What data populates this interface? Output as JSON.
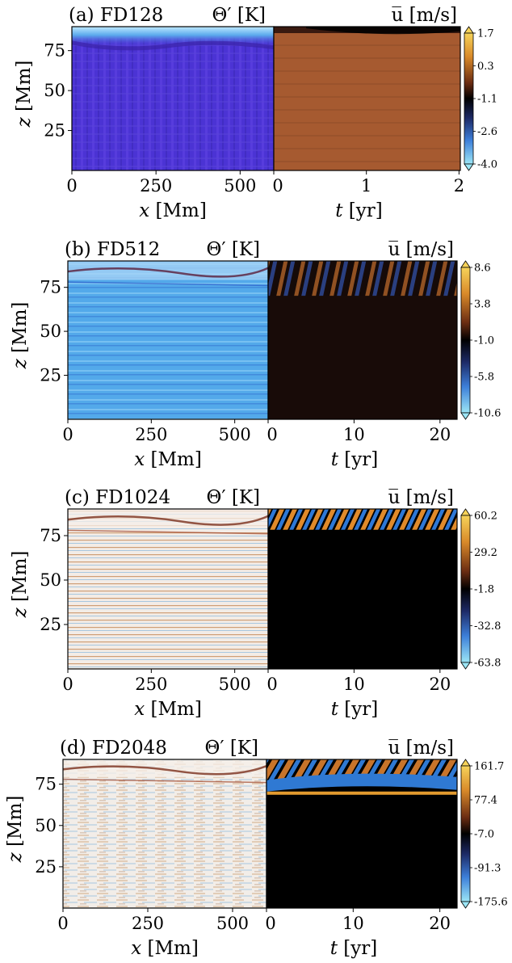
{
  "figure": {
    "panels": [
      {
        "label": "(a) FD128",
        "left_title": "Θ′ [K]",
        "right_title": "u̅ [m/s]",
        "left_xlabel_sym": "x",
        "left_xlabel_unit": "[Mm]",
        "right_xlabel_sym": "t",
        "right_xlabel_unit": "[yr]",
        "ylabel_sym": "z",
        "ylabel_unit": "[Mm]",
        "x_ticks": [
          "0",
          "250",
          "500"
        ],
        "t_ticks": [
          "0",
          "1",
          "2"
        ],
        "z_ticks": [
          "25",
          "50",
          "75"
        ],
        "colorbar_ticks": [
          "1.7",
          "0.3",
          "-1.1",
          "-2.6",
          "-4.0"
        ]
      },
      {
        "label": "(b) FD512",
        "left_title": "Θ′ [K]",
        "right_title": "u̅ [m/s]",
        "left_xlabel_sym": "x",
        "left_xlabel_unit": "[Mm]",
        "right_xlabel_sym": "t",
        "right_xlabel_unit": "[yr]",
        "ylabel_sym": "z",
        "ylabel_unit": "[Mm]",
        "x_ticks": [
          "0",
          "250",
          "500"
        ],
        "t_ticks": [
          "0",
          "10",
          "20"
        ],
        "z_ticks": [
          "25",
          "50",
          "75"
        ],
        "colorbar_ticks": [
          "8.6",
          "3.8",
          "-1.0",
          "-5.8",
          "-10.6"
        ]
      },
      {
        "label": "(c) FD1024",
        "left_title": "Θ′ [K]",
        "right_title": "u̅ [m/s]",
        "left_xlabel_sym": "x",
        "left_xlabel_unit": "[Mm]",
        "right_xlabel_sym": "t",
        "right_xlabel_unit": "[yr]",
        "ylabel_sym": "z",
        "ylabel_unit": "[Mm]",
        "x_ticks": [
          "0",
          "250",
          "500"
        ],
        "t_ticks": [
          "0",
          "10",
          "20"
        ],
        "z_ticks": [
          "25",
          "50",
          "75"
        ],
        "colorbar_ticks": [
          "60.2",
          "29.2",
          "-1.8",
          "-32.8",
          "-63.8"
        ]
      },
      {
        "label": "(d) FD2048",
        "left_title": "Θ′ [K]",
        "right_title": "u̅ [m/s]",
        "left_xlabel_sym": "x",
        "left_xlabel_unit": "[Mm]",
        "right_xlabel_sym": "t",
        "right_xlabel_unit": "[yr]",
        "ylabel_sym": "z",
        "ylabel_unit": "[Mm]",
        "x_ticks": [
          "0",
          "250",
          "500"
        ],
        "t_ticks": [
          "0",
          "10",
          "20"
        ],
        "z_ticks": [
          "25",
          "50",
          "75"
        ],
        "colorbar_ticks": [
          "161.7",
          "77.4",
          "-7.0",
          "-91.3",
          "-175.6"
        ]
      }
    ]
  },
  "chart_data": [
    {
      "type": "heatmap",
      "name": "(a) FD128",
      "left": {
        "x_range": [
          0,
          600
        ],
        "z_range": [
          0,
          90
        ],
        "colormap": "blue-purple"
      },
      "right": {
        "t_range": [
          0,
          2
        ],
        "z_range": [
          0,
          90
        ]
      },
      "colorbar": {
        "min": -4.0,
        "max": 1.7,
        "ticks": [
          1.7,
          0.3,
          -1.1,
          -2.6,
          -4.0
        ],
        "colormap": "diverging cyan-blue-black-orange-yellow"
      }
    },
    {
      "type": "heatmap",
      "name": "(b) FD512",
      "left": {
        "x_range": [
          0,
          600
        ],
        "z_range": [
          0,
          90
        ]
      },
      "right": {
        "t_range": [
          0,
          21
        ],
        "z_range": [
          0,
          90
        ]
      },
      "colorbar": {
        "min": -10.6,
        "max": 8.6,
        "ticks": [
          8.6,
          3.8,
          -1.0,
          -5.8,
          -10.6
        ]
      }
    },
    {
      "type": "heatmap",
      "name": "(c) FD1024",
      "left": {
        "x_range": [
          0,
          600
        ],
        "z_range": [
          0,
          90
        ]
      },
      "right": {
        "t_range": [
          0,
          21
        ],
        "z_range": [
          0,
          90
        ]
      },
      "colorbar": {
        "min": -63.8,
        "max": 60.2,
        "ticks": [
          60.2,
          29.2,
          -1.8,
          -32.8,
          -63.8
        ]
      }
    },
    {
      "type": "heatmap",
      "name": "(d) FD2048",
      "left": {
        "x_range": [
          0,
          600
        ],
        "z_range": [
          0,
          90
        ]
      },
      "right": {
        "t_range": [
          0,
          21
        ],
        "z_range": [
          0,
          90
        ]
      },
      "colorbar": {
        "min": -175.6,
        "max": 161.7,
        "ticks": [
          161.7,
          77.4,
          -7.0,
          -91.3,
          -175.6
        ]
      }
    }
  ],
  "colors": {
    "cb_top": "#f2c94c",
    "cb_orange": "#c8691e",
    "cb_mid": "#000000",
    "cb_blue": "#3a4fd0",
    "cb_bottom": "#8be0f5",
    "purple": "#4a2fd0",
    "lightblue": "#4fa6e8"
  }
}
